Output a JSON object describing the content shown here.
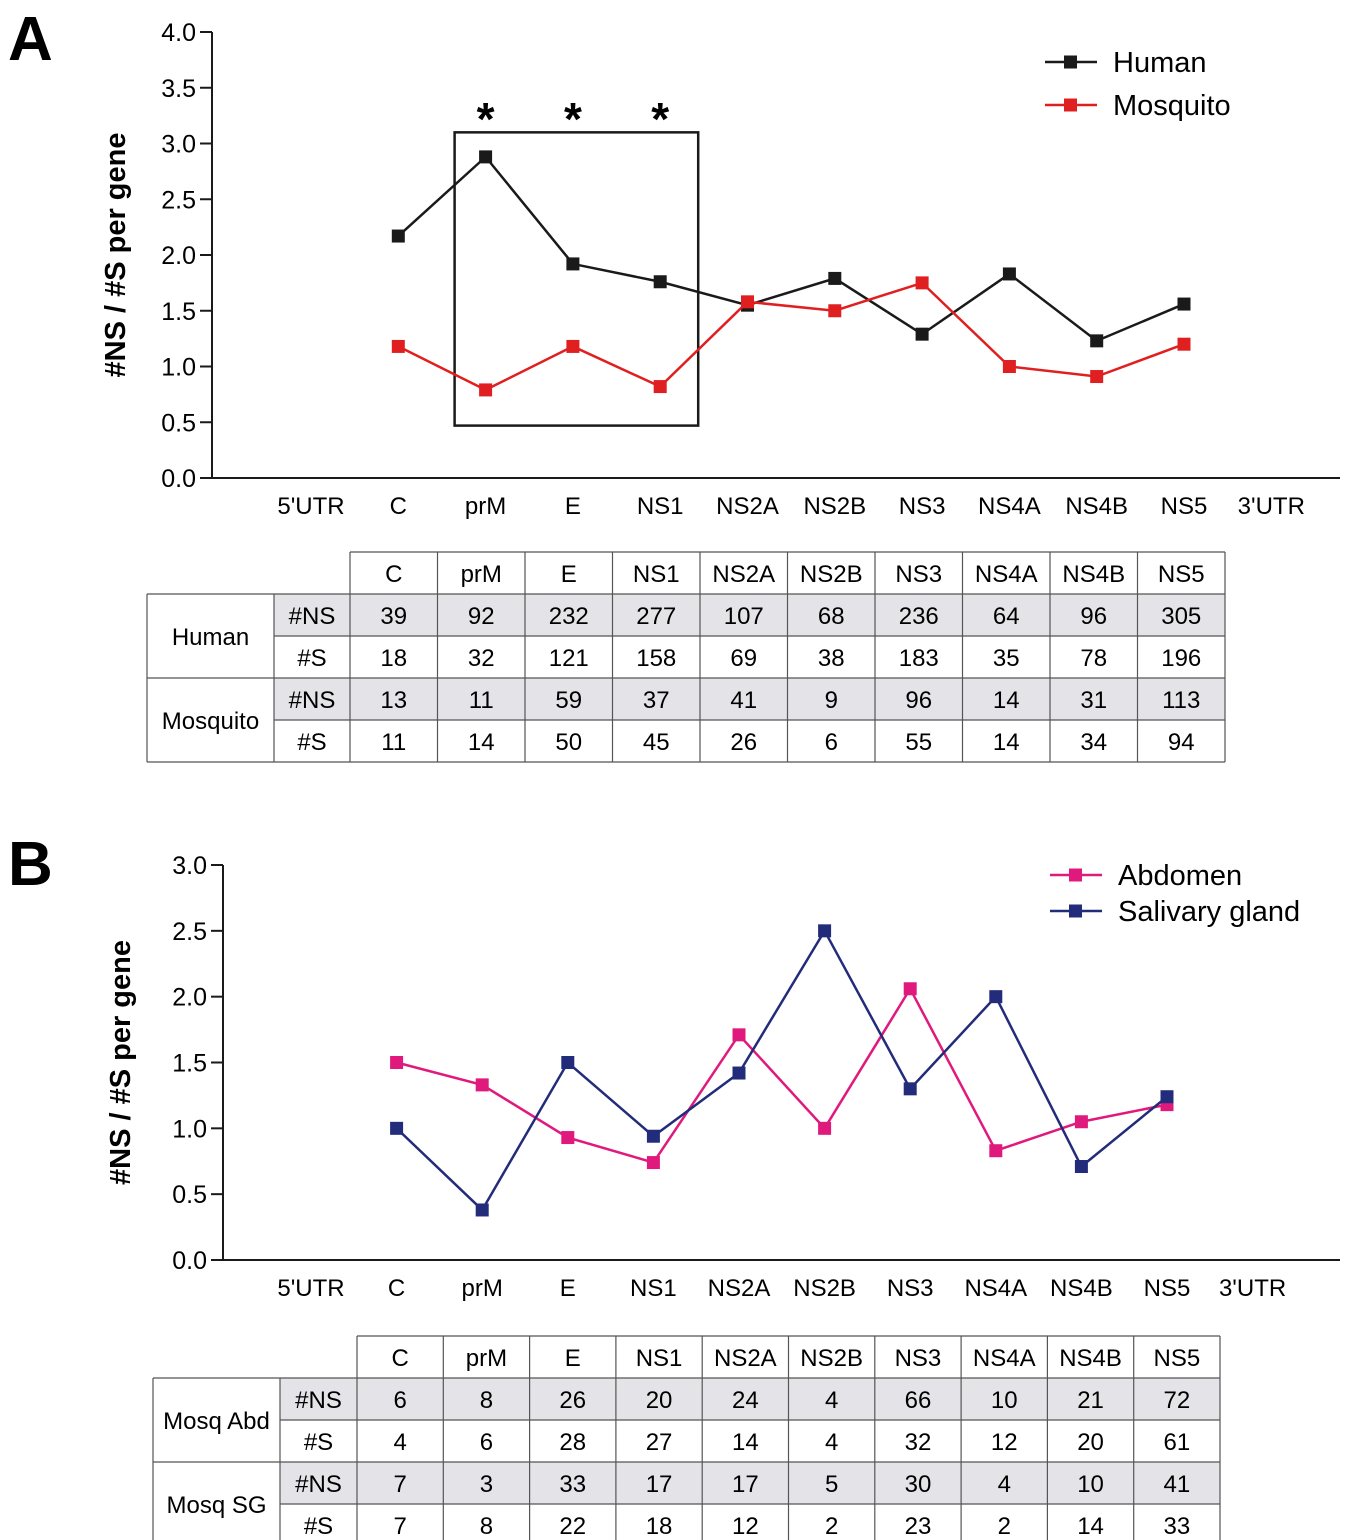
{
  "panels": [
    {
      "label": "A",
      "chart_data": {
        "type": "line",
        "ylabel": "#NS / #S per gene",
        "xlabel": "",
        "ylim": [
          0,
          4
        ],
        "yticks": [
          "0.0",
          "0.5",
          "1.0",
          "1.5",
          "2.0",
          "2.5",
          "3.0",
          "3.5",
          "4.0"
        ],
        "categories": [
          "5'UTR",
          "C",
          "prM",
          "E",
          "NS1",
          "NS2A",
          "NS2B",
          "NS3",
          "NS4A",
          "NS4B",
          "NS5",
          "3'UTR"
        ],
        "series": [
          {
            "name": "Human",
            "color": "#1a1a1a",
            "values": [
              null,
              2.17,
              2.88,
              1.92,
              1.76,
              1.55,
              1.79,
              1.29,
              1.83,
              1.23,
              1.56,
              null
            ]
          },
          {
            "name": "Mosquito",
            "color": "#e02020",
            "values": [
              null,
              1.18,
              0.79,
              1.18,
              0.82,
              1.58,
              1.5,
              1.75,
              1.0,
              0.91,
              1.2,
              null
            ]
          }
        ],
        "legend": "top-right",
        "grid": false,
        "annotations": [
          {
            "text": "*",
            "category": "prM"
          },
          {
            "text": "*",
            "category": "E"
          },
          {
            "text": "*",
            "category": "NS1"
          }
        ],
        "highlight_box": {
          "from": "prM",
          "to": "NS1",
          "ymin": 0.47,
          "ymax": 3.1
        }
      },
      "table": {
        "columns": [
          "C",
          "prM",
          "E",
          "NS1",
          "NS2A",
          "NS2B",
          "NS3",
          "NS4A",
          "NS4B",
          "NS5"
        ],
        "groups": [
          {
            "name": "Human",
            "rows": [
              {
                "label": "#NS",
                "values": [
                  "39",
                  "92",
                  "232",
                  "277",
                  "107",
                  "68",
                  "236",
                  "64",
                  "96",
                  "305"
                ]
              },
              {
                "label": "#S",
                "values": [
                  "18",
                  "32",
                  "121",
                  "158",
                  "69",
                  "38",
                  "183",
                  "35",
                  "78",
                  "196"
                ]
              }
            ]
          },
          {
            "name": "Mosquito",
            "rows": [
              {
                "label": "#NS",
                "values": [
                  "13",
                  "11",
                  "59",
                  "37",
                  "41",
                  "9",
                  "96",
                  "14",
                  "31",
                  "113"
                ]
              },
              {
                "label": "#S",
                "values": [
                  "11",
                  "14",
                  "50",
                  "45",
                  "26",
                  "6",
                  "55",
                  "14",
                  "34",
                  "94"
                ]
              }
            ]
          }
        ]
      }
    },
    {
      "label": "B",
      "chart_data": {
        "type": "line",
        "ylabel": "#NS / #S per gene",
        "xlabel": "",
        "ylim": [
          0,
          3
        ],
        "yticks": [
          "0.0",
          "0.5",
          "1.0",
          "1.5",
          "2.0",
          "2.5",
          "3.0"
        ],
        "categories": [
          "5'UTR",
          "C",
          "prM",
          "E",
          "NS1",
          "NS2A",
          "NS2B",
          "NS3",
          "NS4A",
          "NS4B",
          "NS5",
          "3'UTR"
        ],
        "series": [
          {
            "name": "Abdomen",
            "color": "#e0197d",
            "values": [
              null,
              1.5,
              1.33,
              0.93,
              0.74,
              1.71,
              1.0,
              2.06,
              0.83,
              1.05,
              1.18,
              null
            ]
          },
          {
            "name": "Salivary gland",
            "color": "#232c7a",
            "values": [
              null,
              1.0,
              0.38,
              1.5,
              0.94,
              1.42,
              2.5,
              1.3,
              2.0,
              0.71,
              1.24,
              null
            ]
          }
        ],
        "legend": "top-right",
        "grid": false
      },
      "table": {
        "columns": [
          "C",
          "prM",
          "E",
          "NS1",
          "NS2A",
          "NS2B",
          "NS3",
          "NS4A",
          "NS4B",
          "NS5"
        ],
        "groups": [
          {
            "name": "Mosq Abd",
            "rows": [
              {
                "label": "#NS",
                "values": [
                  "6",
                  "8",
                  "26",
                  "20",
                  "24",
                  "4",
                  "66",
                  "10",
                  "21",
                  "72"
                ]
              },
              {
                "label": "#S",
                "values": [
                  "4",
                  "6",
                  "28",
                  "27",
                  "14",
                  "4",
                  "32",
                  "12",
                  "20",
                  "61"
                ]
              }
            ]
          },
          {
            "name": "Mosq SG",
            "rows": [
              {
                "label": "#NS",
                "values": [
                  "7",
                  "3",
                  "33",
                  "17",
                  "17",
                  "5",
                  "30",
                  "4",
                  "10",
                  "41"
                ]
              },
              {
                "label": "#S",
                "values": [
                  "7",
                  "8",
                  "22",
                  "18",
                  "12",
                  "2",
                  "23",
                  "2",
                  "14",
                  "33"
                ]
              }
            ]
          }
        ]
      }
    }
  ]
}
